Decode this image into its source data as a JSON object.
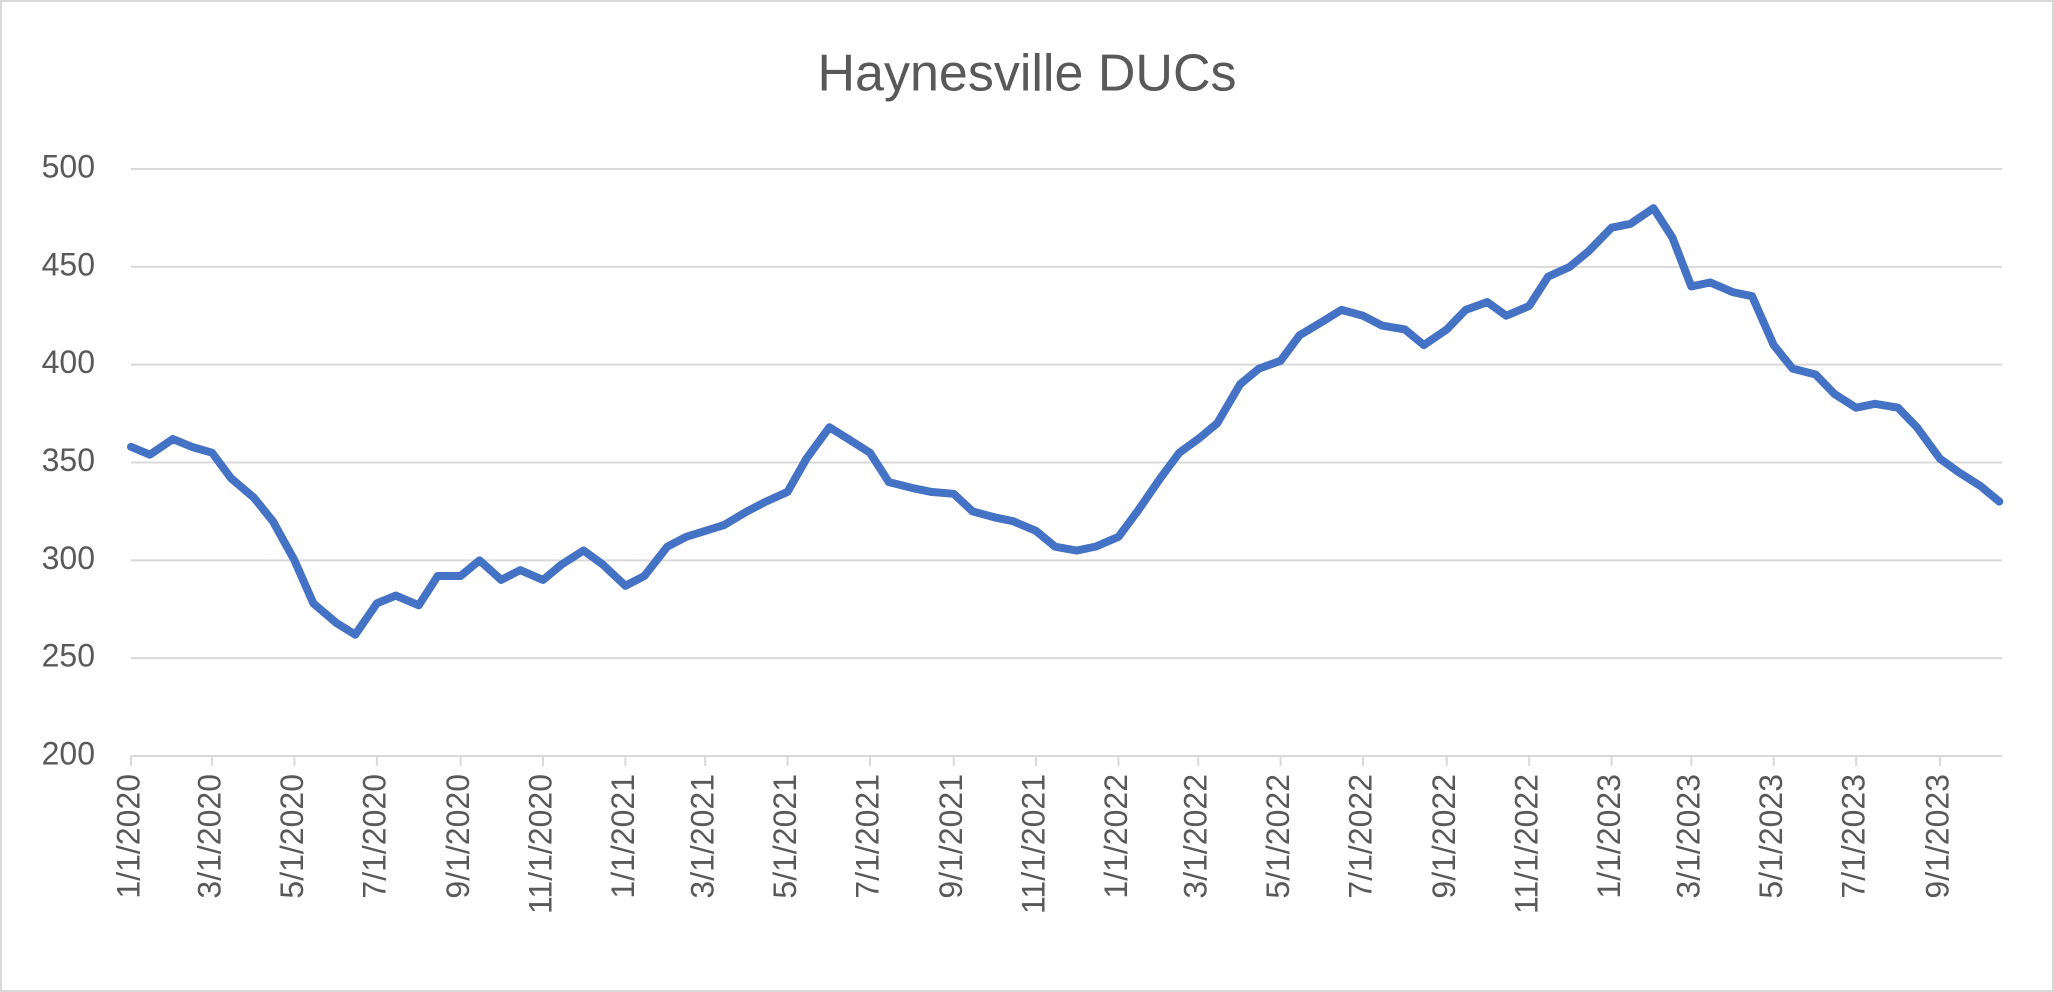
{
  "chart_data": {
    "type": "line",
    "title": "Haynesville DUCs",
    "x": [
      "2020-01-01",
      "2020-01-15",
      "2020-02-01",
      "2020-02-15",
      "2020-03-01",
      "2020-03-15",
      "2020-04-01",
      "2020-04-15",
      "2020-05-01",
      "2020-05-15",
      "2020-06-01",
      "2020-06-15",
      "2020-07-01",
      "2020-07-15",
      "2020-08-01",
      "2020-08-15",
      "2020-09-01",
      "2020-09-15",
      "2020-10-01",
      "2020-10-15",
      "2020-11-01",
      "2020-11-15",
      "2020-12-01",
      "2020-12-15",
      "2021-01-01",
      "2021-01-15",
      "2021-02-01",
      "2021-02-15",
      "2021-03-01",
      "2021-03-15",
      "2021-04-01",
      "2021-04-15",
      "2021-05-01",
      "2021-05-15",
      "2021-06-01",
      "2021-06-15",
      "2021-07-01",
      "2021-07-15",
      "2021-08-01",
      "2021-08-15",
      "2021-09-01",
      "2021-09-15",
      "2021-10-01",
      "2021-10-15",
      "2021-11-01",
      "2021-11-15",
      "2021-12-01",
      "2021-12-15",
      "2022-01-01",
      "2022-01-15",
      "2022-02-01",
      "2022-02-15",
      "2022-03-01",
      "2022-03-15",
      "2022-04-01",
      "2022-04-15",
      "2022-05-01",
      "2022-05-15",
      "2022-06-01",
      "2022-06-15",
      "2022-07-01",
      "2022-07-15",
      "2022-08-01",
      "2022-08-15",
      "2022-09-01",
      "2022-09-15",
      "2022-10-01",
      "2022-10-15",
      "2022-11-01",
      "2022-11-15",
      "2022-12-01",
      "2022-12-15",
      "2023-01-01",
      "2023-01-15",
      "2023-02-01",
      "2023-02-15",
      "2023-03-01",
      "2023-03-15",
      "2023-04-01",
      "2023-04-15",
      "2023-05-01",
      "2023-05-15",
      "2023-06-01",
      "2023-06-15",
      "2023-07-01",
      "2023-07-15",
      "2023-08-01",
      "2023-08-15",
      "2023-09-01",
      "2023-09-15",
      "2023-10-01",
      "2023-10-15"
    ],
    "series": [
      {
        "name": "Haynesville DUCs",
        "color": "#4472c4",
        "values": [
          358,
          354,
          362,
          358,
          355,
          342,
          332,
          320,
          300,
          278,
          268,
          262,
          278,
          282,
          277,
          292,
          292,
          300,
          290,
          295,
          290,
          298,
          305,
          298,
          287,
          292,
          307,
          312,
          315,
          318,
          325,
          330,
          335,
          352,
          368,
          362,
          355,
          340,
          337,
          335,
          334,
          325,
          322,
          320,
          315,
          307,
          305,
          307,
          312,
          325,
          342,
          355,
          362,
          370,
          390,
          398,
          402,
          415,
          422,
          428,
          425,
          420,
          418,
          410,
          418,
          428,
          432,
          425,
          430,
          445,
          450,
          458,
          470,
          472,
          480,
          465,
          440,
          442,
          437,
          435,
          410,
          398,
          395,
          385,
          378,
          380,
          378,
          368,
          352,
          345,
          338,
          330
        ]
      }
    ],
    "xlim": [
      "2020-01-01",
      "2023-10-17"
    ],
    "xticks": [
      {
        "value": "2020-01-01",
        "label": "1/1/2020"
      },
      {
        "value": "2020-03-01",
        "label": "3/1/2020"
      },
      {
        "value": "2020-05-01",
        "label": "5/1/2020"
      },
      {
        "value": "2020-07-01",
        "label": "7/1/2020"
      },
      {
        "value": "2020-09-01",
        "label": "9/1/2020"
      },
      {
        "value": "2020-11-01",
        "label": "11/1/2020"
      },
      {
        "value": "2021-01-01",
        "label": "1/1/2021"
      },
      {
        "value": "2021-03-01",
        "label": "3/1/2021"
      },
      {
        "value": "2021-05-01",
        "label": "5/1/2021"
      },
      {
        "value": "2021-07-01",
        "label": "7/1/2021"
      },
      {
        "value": "2021-09-01",
        "label": "9/1/2021"
      },
      {
        "value": "2021-11-01",
        "label": "11/1/2021"
      },
      {
        "value": "2022-01-01",
        "label": "1/1/2022"
      },
      {
        "value": "2022-03-01",
        "label": "3/1/2022"
      },
      {
        "value": "2022-05-01",
        "label": "5/1/2022"
      },
      {
        "value": "2022-07-01",
        "label": "7/1/2022"
      },
      {
        "value": "2022-09-01",
        "label": "9/1/2022"
      },
      {
        "value": "2022-11-01",
        "label": "11/1/2022"
      },
      {
        "value": "2023-01-01",
        "label": "1/1/2023"
      },
      {
        "value": "2023-03-01",
        "label": "3/1/2023"
      },
      {
        "value": "2023-05-01",
        "label": "5/1/2023"
      },
      {
        "value": "2023-07-01",
        "label": "7/1/2023"
      },
      {
        "value": "2023-09-01",
        "label": "9/1/2023"
      }
    ],
    "ylim": [
      200,
      500
    ],
    "yticks": [
      200,
      250,
      300,
      350,
      400,
      450,
      500
    ],
    "grid": true
  }
}
